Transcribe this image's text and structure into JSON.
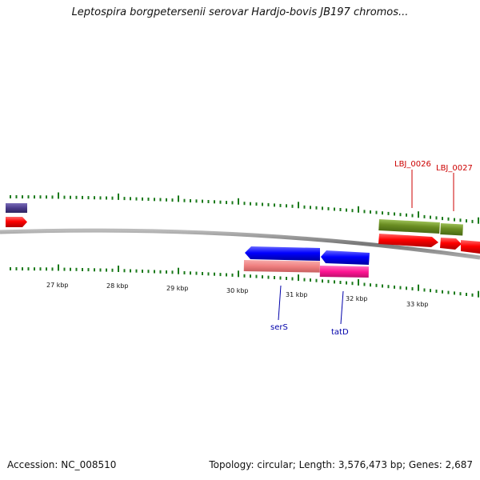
{
  "title": "Leptospira borgpetersenii serovar Hardjo-bovis JB197 chromos...",
  "footer": {
    "accession": "Accession: NC_008510",
    "summary": "Topology: circular; Length: 3,576,473 bp; Genes: 2,687"
  },
  "scale_labels": [
    "27 kbp",
    "28 kbp",
    "29 kbp",
    "30 kbp",
    "31 kbp",
    "32 kbp",
    "33 kbp"
  ],
  "genes": {
    "lbj_0026": "LBJ_0026",
    "lbj_0027": "LBJ_0027",
    "serS": "serS",
    "tatD": "tatD"
  },
  "colors": {
    "tick": "#1a7a1a",
    "backbone": "#888888",
    "forward_cds": "#ff0000",
    "reverse_cds": "#0000ff",
    "forward_gene": "#6b8e23",
    "reverse_gene_serS": "#f08080",
    "reverse_gene_tatD": "#ff1493",
    "forward_label": "#cc0000",
    "reverse_label": "#0000aa",
    "other_feature": "#4b3c8c"
  }
}
